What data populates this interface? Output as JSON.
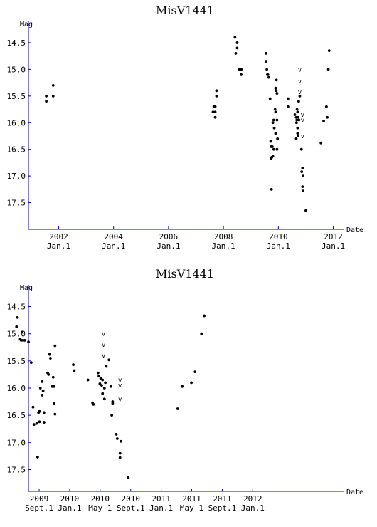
{
  "chart_data": [
    {
      "type": "scatter",
      "title": "MisV1441",
      "ylabel": "Mag",
      "xlabel": "Date",
      "x_unit": "year",
      "xlim": [
        2000.9,
        2012.4
      ],
      "ylim": [
        14.1,
        18.0
      ],
      "y_inverted": true,
      "y_ticks": [
        "14.5",
        "15.0",
        "15.5",
        "16.0",
        "16.5",
        "17.0",
        "17.5"
      ],
      "x_ticks": [
        {
          "x": 2002,
          "year": "2002",
          "sub": "Jan.1"
        },
        {
          "x": 2004,
          "year": "2004",
          "sub": "Jan.1"
        },
        {
          "x": 2006,
          "year": "2006",
          "sub": "Jan.1"
        },
        {
          "x": 2008,
          "year": "2008",
          "sub": "Jan.1"
        },
        {
          "x": 2010,
          "year": "2010",
          "sub": "Jan.1"
        },
        {
          "x": 2012,
          "year": "2012",
          "sub": "Jan.1"
        }
      ],
      "points": [
        [
          2001.55,
          15.5
        ],
        [
          2001.55,
          15.6
        ],
        [
          2001.8,
          15.3
        ],
        [
          2001.8,
          15.5
        ],
        [
          2007.65,
          15.7
        ],
        [
          2007.62,
          15.8
        ],
        [
          2007.7,
          15.8
        ],
        [
          2007.7,
          15.9
        ],
        [
          2007.75,
          15.5
        ],
        [
          2007.75,
          15.4
        ],
        [
          2007.7,
          15.7
        ],
        [
          2008.42,
          14.4
        ],
        [
          2008.5,
          14.5
        ],
        [
          2008.5,
          14.6
        ],
        [
          2008.45,
          14.7
        ],
        [
          2008.58,
          15.0
        ],
        [
          2008.65,
          15.0
        ],
        [
          2008.65,
          15.1
        ],
        [
          2009.55,
          14.7
        ],
        [
          2009.55,
          14.85
        ],
        [
          2009.58,
          15.0
        ],
        [
          2009.6,
          15.1
        ],
        [
          2009.62,
          15.1
        ],
        [
          2009.65,
          15.15
        ],
        [
          2009.7,
          15.55
        ],
        [
          2009.72,
          16.35
        ],
        [
          2009.74,
          16.45
        ],
        [
          2009.78,
          16.45
        ],
        [
          2009.76,
          16.65
        ],
        [
          2009.74,
          16.67
        ],
        [
          2009.8,
          16.63
        ],
        [
          2009.83,
          16.5
        ],
        [
          2009.75,
          17.25
        ],
        [
          2009.8,
          16.0
        ],
        [
          2009.83,
          15.95
        ],
        [
          2009.85,
          16.1
        ],
        [
          2009.9,
          16.2
        ],
        [
          2009.88,
          15.75
        ],
        [
          2009.9,
          15.8
        ],
        [
          2009.92,
          15.4
        ],
        [
          2009.9,
          15.35
        ],
        [
          2009.93,
          15.2
        ],
        [
          2009.95,
          15.45
        ],
        [
          2009.95,
          15.95
        ],
        [
          2009.97,
          16.3
        ],
        [
          2009.95,
          16.5
        ],
        [
          2010.35,
          15.55
        ],
        [
          2010.35,
          15.7
        ],
        [
          2010.6,
          15.85
        ],
        [
          2010.65,
          15.9
        ],
        [
          2010.66,
          16.0
        ],
        [
          2010.67,
          15.95
        ],
        [
          2010.68,
          15.75
        ],
        [
          2010.7,
          15.8
        ],
        [
          2010.72,
          15.9
        ],
        [
          2010.75,
          15.95
        ],
        [
          2010.7,
          16.1
        ],
        [
          2010.7,
          16.2
        ],
        [
          2010.72,
          16.25
        ],
        [
          2010.65,
          16.3
        ],
        [
          2010.74,
          15.6
        ],
        [
          2010.78,
          15.5
        ],
        [
          2010.84,
          16.5
        ],
        [
          2010.88,
          16.85
        ],
        [
          2010.9,
          17.0
        ],
        [
          2010.88,
          17.2
        ],
        [
          2010.9,
          17.28
        ],
        [
          2010.85,
          16.92
        ],
        [
          2011.0,
          17.65
        ],
        [
          2011.55,
          16.38
        ],
        [
          2011.65,
          15.97
        ],
        [
          2011.75,
          15.7
        ],
        [
          2011.78,
          15.9
        ],
        [
          2011.82,
          15.0
        ],
        [
          2011.85,
          14.65
        ]
      ],
      "upper_limits": [
        [
          2010.78,
          15.0
        ],
        [
          2010.78,
          15.22
        ],
        [
          2010.78,
          15.42
        ],
        [
          2010.88,
          15.85
        ],
        [
          2010.88,
          15.95
        ],
        [
          2010.88,
          16.25
        ]
      ]
    },
    {
      "type": "scatter",
      "title": "MisV1441",
      "ylabel": "Mag",
      "xlabel": "Date",
      "x_unit": "year",
      "xlim": [
        2008.55,
        2012.0
      ],
      "ylim": [
        14.1,
        17.9
      ],
      "y_inverted": true,
      "y_ticks": [
        "14.5",
        "15.0",
        "15.5",
        "16.0",
        "16.5",
        "17.0",
        "17.5"
      ],
      "x_ticks": [
        {
          "x": 2008.667,
          "year": "2009",
          "sub": "Sept.1"
        },
        {
          "x": 2009.0,
          "year": "2010",
          "sub": "Jan.1"
        },
        {
          "x": 2009.333,
          "year": "2010",
          "sub": "May 1"
        },
        {
          "x": 2009.667,
          "year": "2010",
          "sub": "Sept.1"
        },
        {
          "x": 2010.0,
          "year": "2011",
          "sub": "Jan.1"
        },
        {
          "x": 2010.333,
          "year": "2011",
          "sub": "May 1"
        },
        {
          "x": 2010.667,
          "year": "2011",
          "sub": "Sept.1"
        },
        {
          "x": 2011.0,
          "year": "2012",
          "sub": "Jan.1"
        }
      ],
      "points": [
        [
          2008.42,
          14.87
        ],
        [
          2008.43,
          14.7
        ],
        [
          2008.46,
          15.1
        ],
        [
          2008.47,
          15.12
        ],
        [
          2008.48,
          14.97
        ],
        [
          2008.49,
          15.12
        ],
        [
          2008.51,
          15.12
        ],
        [
          2008.55,
          15.15
        ],
        [
          2008.58,
          15.53
        ],
        [
          2008.6,
          16.35
        ],
        [
          2008.61,
          16.67
        ],
        [
          2008.64,
          16.65
        ],
        [
          2008.65,
          17.27
        ],
        [
          2008.66,
          16.45
        ],
        [
          2008.67,
          16.43
        ],
        [
          2008.67,
          16.62
        ],
        [
          2008.68,
          16.0
        ],
        [
          2008.7,
          15.88
        ],
        [
          2008.71,
          16.05
        ],
        [
          2008.7,
          16.13
        ],
        [
          2008.72,
          16.45
        ],
        [
          2008.72,
          16.63
        ],
        [
          2008.76,
          15.72
        ],
        [
          2008.77,
          15.75
        ],
        [
          2008.78,
          15.38
        ],
        [
          2008.79,
          15.45
        ],
        [
          2008.82,
          15.8
        ],
        [
          2008.81,
          15.97
        ],
        [
          2008.83,
          15.97
        ],
        [
          2008.83,
          16.28
        ],
        [
          2008.84,
          16.48
        ],
        [
          2008.84,
          15.22
        ],
        [
          2009.04,
          15.57
        ],
        [
          2009.05,
          15.68
        ],
        [
          2009.2,
          15.85
        ],
        [
          2009.25,
          16.27
        ],
        [
          2009.26,
          16.3
        ],
        [
          2009.31,
          15.72
        ],
        [
          2009.32,
          15.78
        ],
        [
          2009.33,
          15.92
        ],
        [
          2009.34,
          15.82
        ],
        [
          2009.35,
          15.95
        ],
        [
          2009.36,
          15.85
        ],
        [
          2009.36,
          16.1
        ],
        [
          2009.38,
          16.0
        ],
        [
          2009.38,
          16.2
        ],
        [
          2009.39,
          15.9
        ],
        [
          2009.4,
          15.6
        ],
        [
          2009.43,
          15.48
        ],
        [
          2009.45,
          15.97
        ],
        [
          2009.46,
          16.5
        ],
        [
          2009.47,
          16.25
        ],
        [
          2009.47,
          16.28
        ],
        [
          2009.51,
          16.85
        ],
        [
          2009.52,
          16.93
        ],
        [
          2009.55,
          17.2
        ],
        [
          2009.55,
          17.28
        ],
        [
          2009.56,
          16.98
        ],
        [
          2009.64,
          17.65
        ],
        [
          2010.18,
          16.38
        ],
        [
          2010.23,
          15.97
        ],
        [
          2010.33,
          15.9
        ],
        [
          2010.37,
          15.7
        ],
        [
          2010.44,
          15.0
        ],
        [
          2010.47,
          14.67
        ]
      ],
      "upper_limits": [
        [
          2009.37,
          15.0
        ],
        [
          2009.37,
          15.2
        ],
        [
          2009.37,
          15.4
        ],
        [
          2009.55,
          15.85
        ],
        [
          2009.55,
          15.95
        ],
        [
          2009.55,
          16.2
        ]
      ]
    }
  ]
}
